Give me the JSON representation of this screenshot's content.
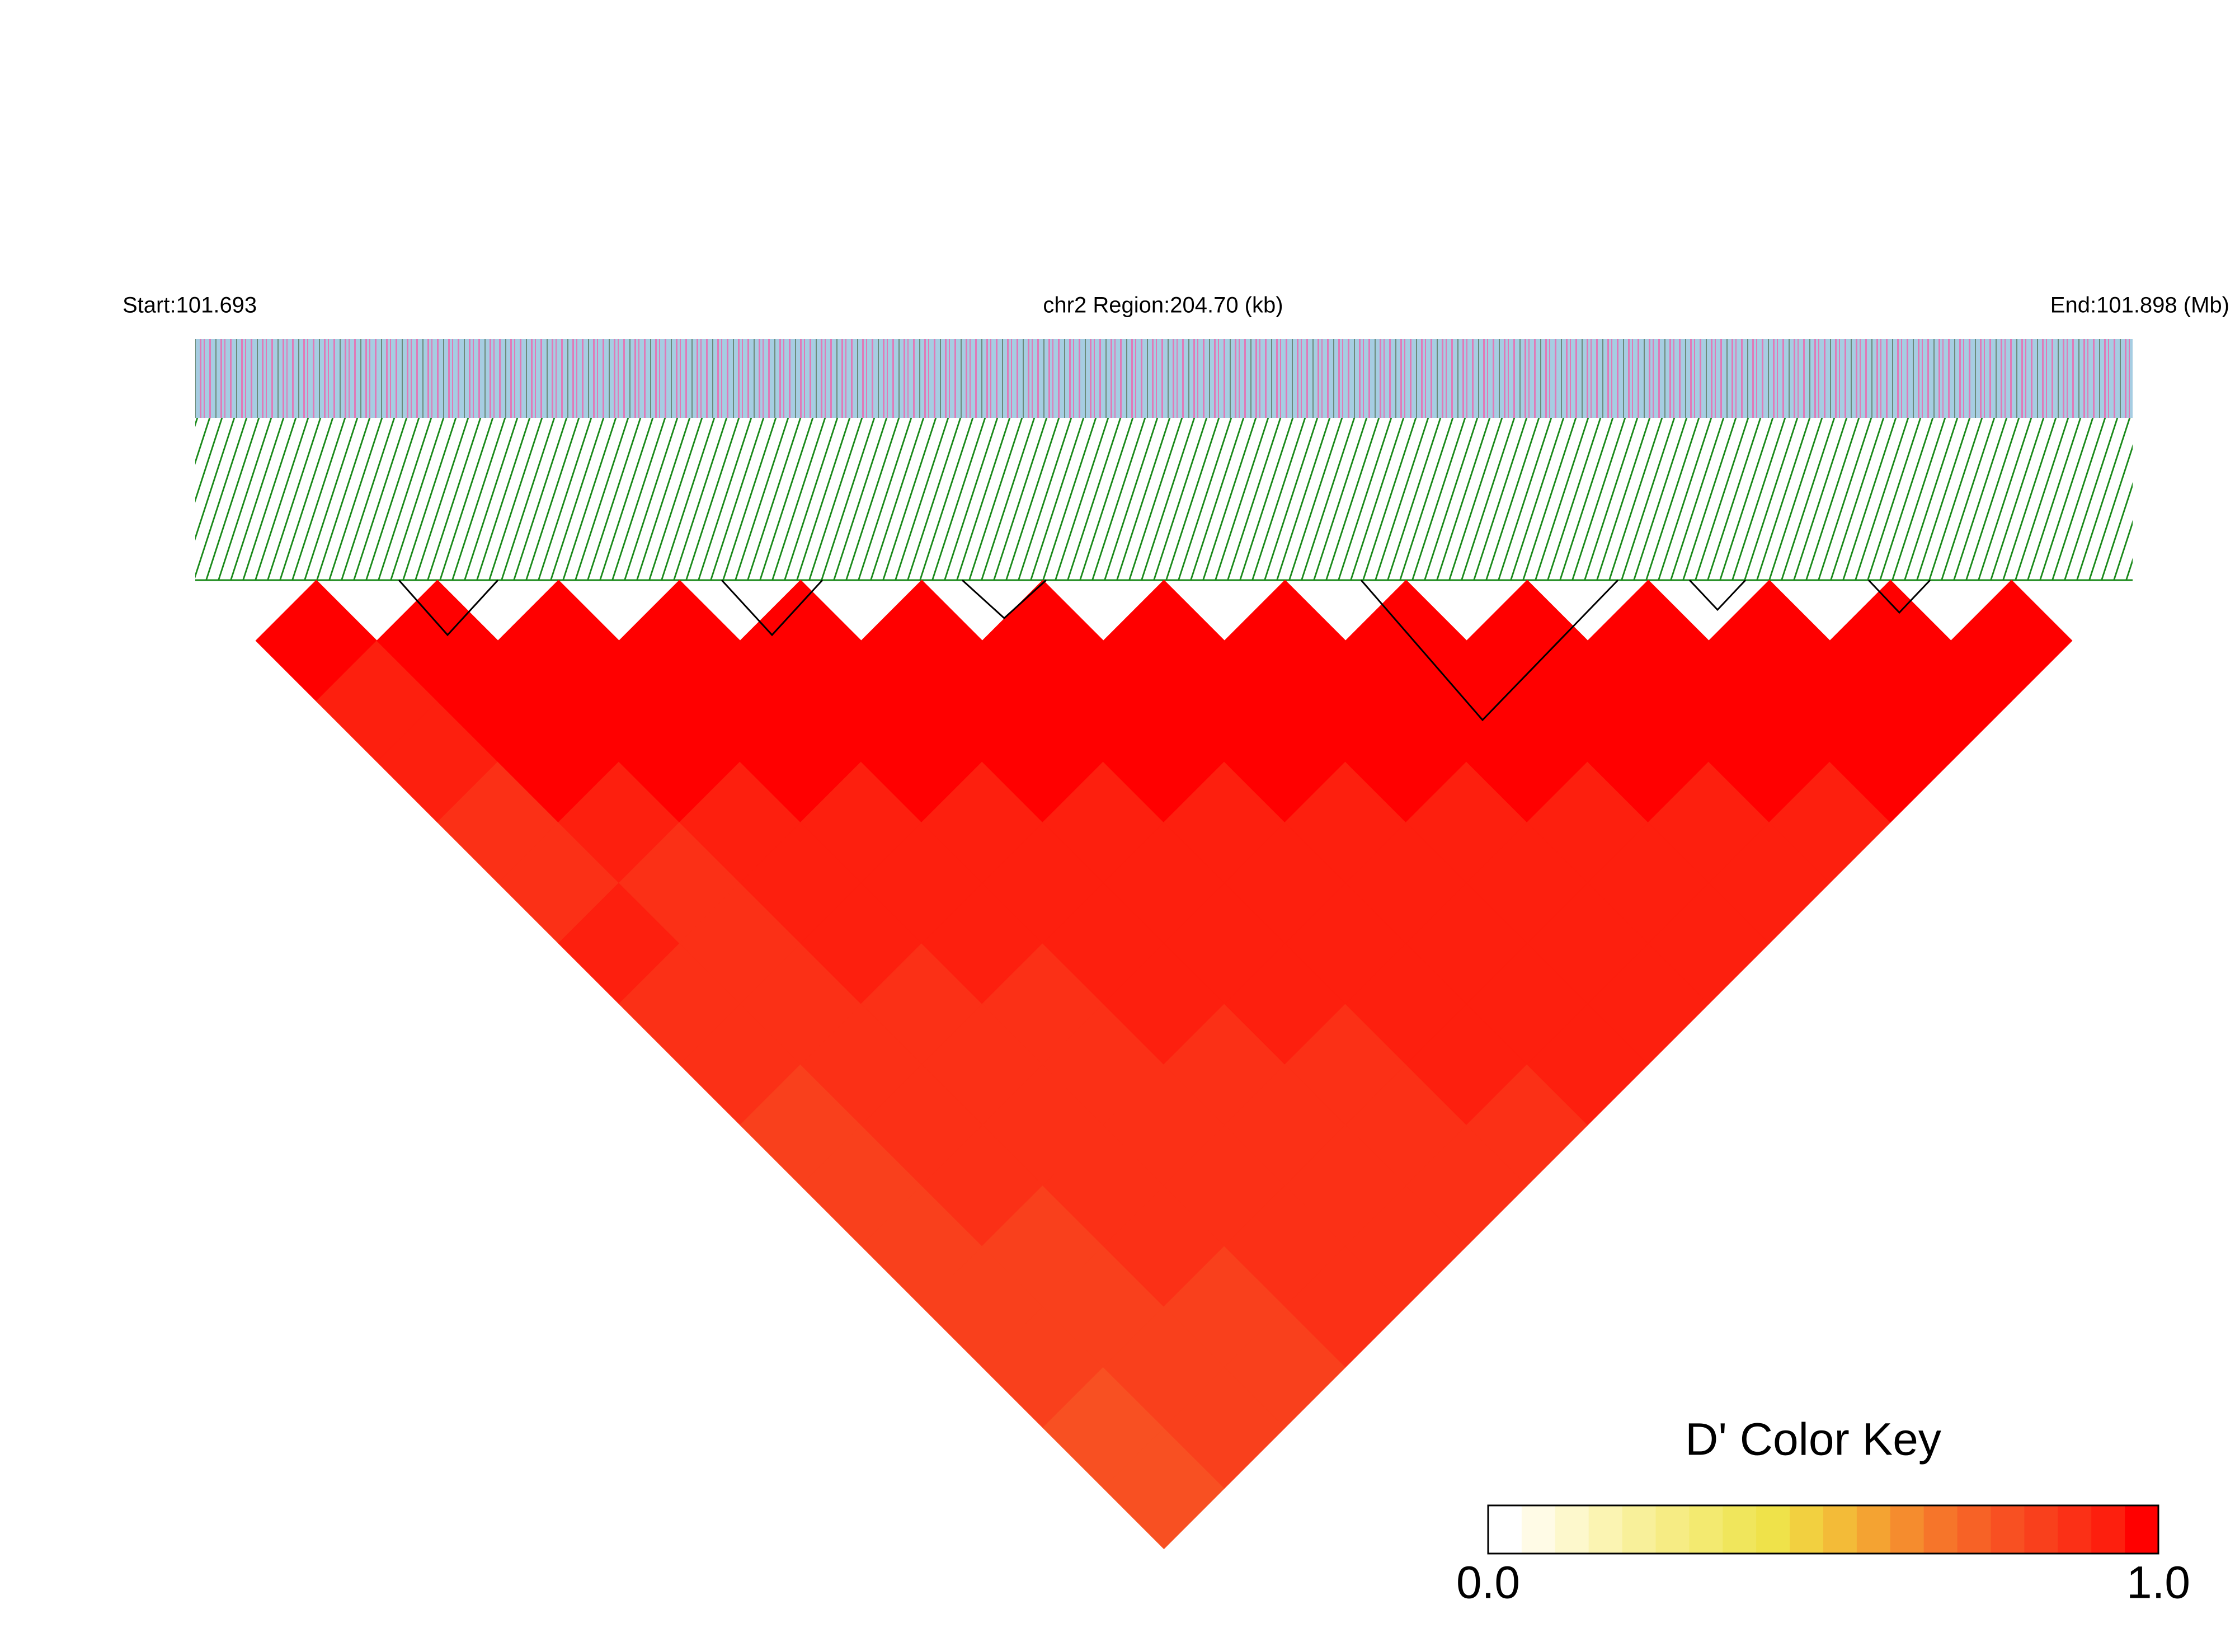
{
  "chart_data": {
    "type": "ld_heatmap",
    "start_label": "Start:101.693",
    "region_label": "chr2 Region:204.70 (kb)",
    "end_label": "End:101.898 (Mb)",
    "key_title": "D' Color Key",
    "key_lim": [
      0,
      1
    ],
    "key_ticks": [
      {
        "value": 0,
        "label": "0.0"
      },
      {
        "value": 1,
        "label": "1.0"
      }
    ],
    "key_colors": [
      "#ffffff",
      "#fffbe6",
      "#fdf8cc",
      "#fbf4b2",
      "#f8f09a",
      "#f6ec84",
      "#f3ea70",
      "#f0e65c",
      "#efe24a",
      "#f2d040",
      "#f3bb38",
      "#f4a332",
      "#f58c2e",
      "#f6752a",
      "#f76226",
      "#f85022",
      "#f9401c",
      "#fb3016",
      "#fd1f0e",
      "#ff0000"
    ],
    "values": [
      [
        1
      ],
      [
        0.97,
        1
      ],
      [
        0.95,
        1,
        1
      ],
      [
        0.92,
        0.98,
        1,
        1
      ],
      [
        0.9,
        0.95,
        0.98,
        1,
        1
      ],
      [
        0.93,
        0.9,
        0.96,
        0.98,
        1,
        1
      ],
      [
        0.88,
        0.92,
        0.95,
        0.97,
        0.99,
        1,
        1
      ],
      [
        0.9,
        0.87,
        0.93,
        0.95,
        0.96,
        0.98,
        1,
        1
      ],
      [
        0.85,
        0.9,
        0.9,
        0.94,
        0.95,
        0.97,
        0.98,
        1,
        1
      ],
      [
        0.86,
        0.88,
        0.92,
        0.9,
        0.94,
        0.96,
        0.97,
        0.99,
        1,
        1
      ],
      [
        0.84,
        0.87,
        0.89,
        0.92,
        0.93,
        0.94,
        0.96,
        0.97,
        0.99,
        1,
        1
      ],
      [
        0.83,
        0.86,
        0.88,
        0.9,
        0.92,
        0.93,
        0.95,
        0.96,
        0.97,
        0.98,
        1,
        1
      ],
      [
        0.82,
        0.85,
        0.87,
        0.89,
        0.91,
        0.92,
        0.94,
        0.95,
        0.96,
        0.97,
        0.99,
        1,
        1
      ],
      [
        0.8,
        0.84,
        0.86,
        0.88,
        0.9,
        0.91,
        0.93,
        0.94,
        0.95,
        0.96,
        0.97,
        0.99,
        1,
        1
      ],
      [
        0.8,
        0.83,
        0.85,
        0.87,
        0.89,
        0.9,
        0.92,
        0.93,
        0.94,
        0.95,
        0.96,
        0.97,
        0.98,
        1,
        1
      ]
    ]
  }
}
